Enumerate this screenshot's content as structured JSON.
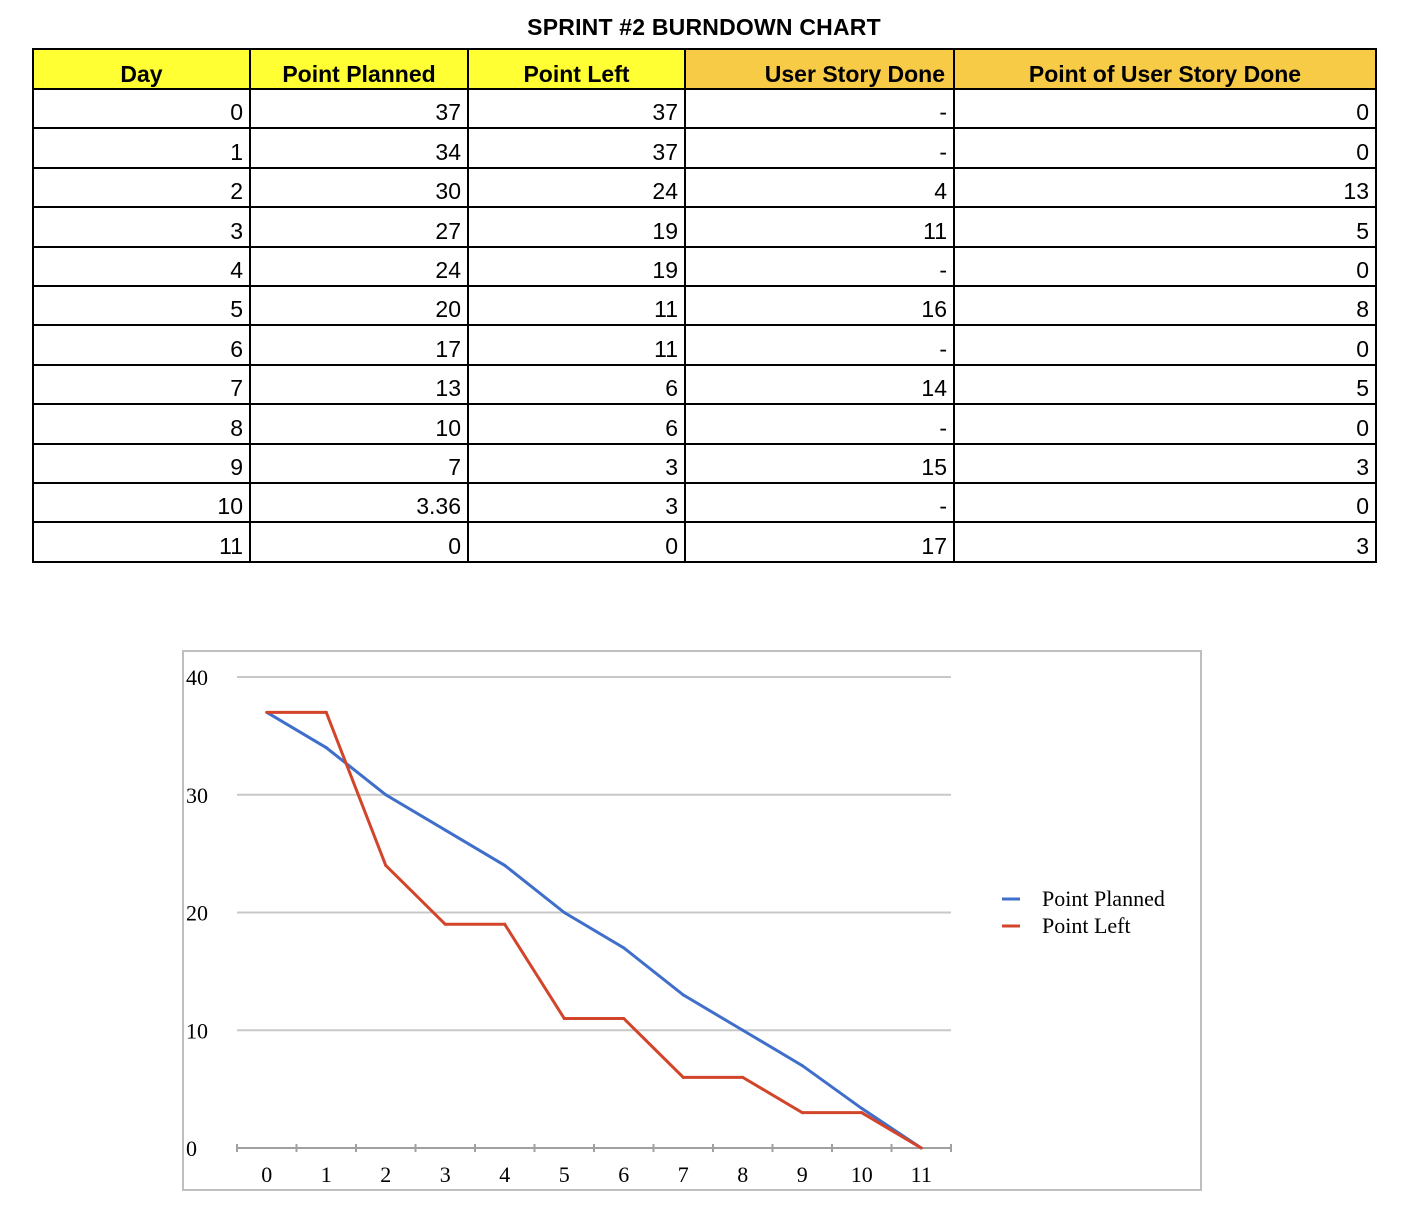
{
  "page_title": "SPRINT #2 BURNDOWN CHART",
  "table": {
    "headers": [
      "Day",
      "Point Planned",
      "Point Left",
      "User Story Done",
      "Point of User Story Done"
    ],
    "rows": [
      [
        "0",
        "37",
        "37",
        "-",
        "0"
      ],
      [
        "1",
        "34",
        "37",
        "-",
        "0"
      ],
      [
        "2",
        "30",
        "24",
        "4",
        "13"
      ],
      [
        "3",
        "27",
        "19",
        "11",
        "5"
      ],
      [
        "4",
        "24",
        "19",
        "-",
        "0"
      ],
      [
        "5",
        "20",
        "11",
        "16",
        "8"
      ],
      [
        "6",
        "17",
        "11",
        "-",
        "0"
      ],
      [
        "7",
        "13",
        "6",
        "14",
        "5"
      ],
      [
        "8",
        "10",
        "6",
        "-",
        "0"
      ],
      [
        "9",
        "7",
        "3",
        "15",
        "3"
      ],
      [
        "10",
        "3.36",
        "3",
        "-",
        "0"
      ],
      [
        "11",
        "0",
        "0",
        "17",
        "3"
      ]
    ],
    "header_colors": [
      "#ffff33",
      "#ffff33",
      "#ffff33",
      "#f8cb46",
      "#f8cb46"
    ]
  },
  "chart_data": {
    "type": "line",
    "title": "",
    "xlabel": "",
    "ylabel": "",
    "x": [
      0,
      1,
      2,
      3,
      4,
      5,
      6,
      7,
      8,
      9,
      10,
      11
    ],
    "xlim": [
      -0.5,
      11.5
    ],
    "ylim": [
      0,
      40
    ],
    "yticks": [
      0,
      10,
      20,
      30,
      40
    ],
    "grid": true,
    "legend": "right",
    "series": [
      {
        "name": "Point Planned",
        "color": "#3f6fca",
        "values": [
          37,
          34,
          30,
          27,
          24,
          20,
          17,
          13,
          10,
          7,
          3.36,
          0
        ]
      },
      {
        "name": "Point Left",
        "color": "#d2452b",
        "values": [
          37,
          37,
          24,
          19,
          19,
          11,
          11,
          6,
          6,
          3,
          3,
          0
        ]
      }
    ]
  }
}
